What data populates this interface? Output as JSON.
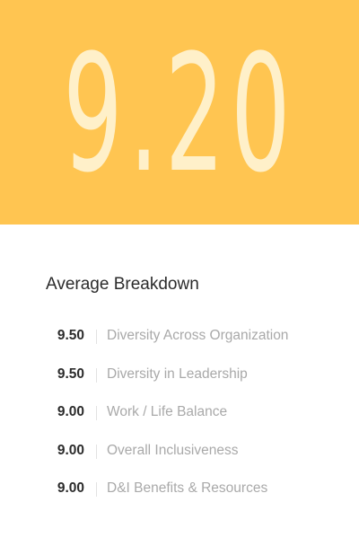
{
  "hero": {
    "score": "9.20",
    "background_color": "#ffc551",
    "score_color": "#fff0c9"
  },
  "breakdown": {
    "title": "Average Breakdown",
    "items": [
      {
        "score": "9.50",
        "label": "Diversity Across Organization"
      },
      {
        "score": "9.50",
        "label": "Diversity in Leadership"
      },
      {
        "score": "9.00",
        "label": "Work / Life Balance"
      },
      {
        "score": "9.00",
        "label": "Overall Inclusiveness"
      },
      {
        "score": "9.00",
        "label": "D&I Benefits & Resources"
      }
    ]
  }
}
